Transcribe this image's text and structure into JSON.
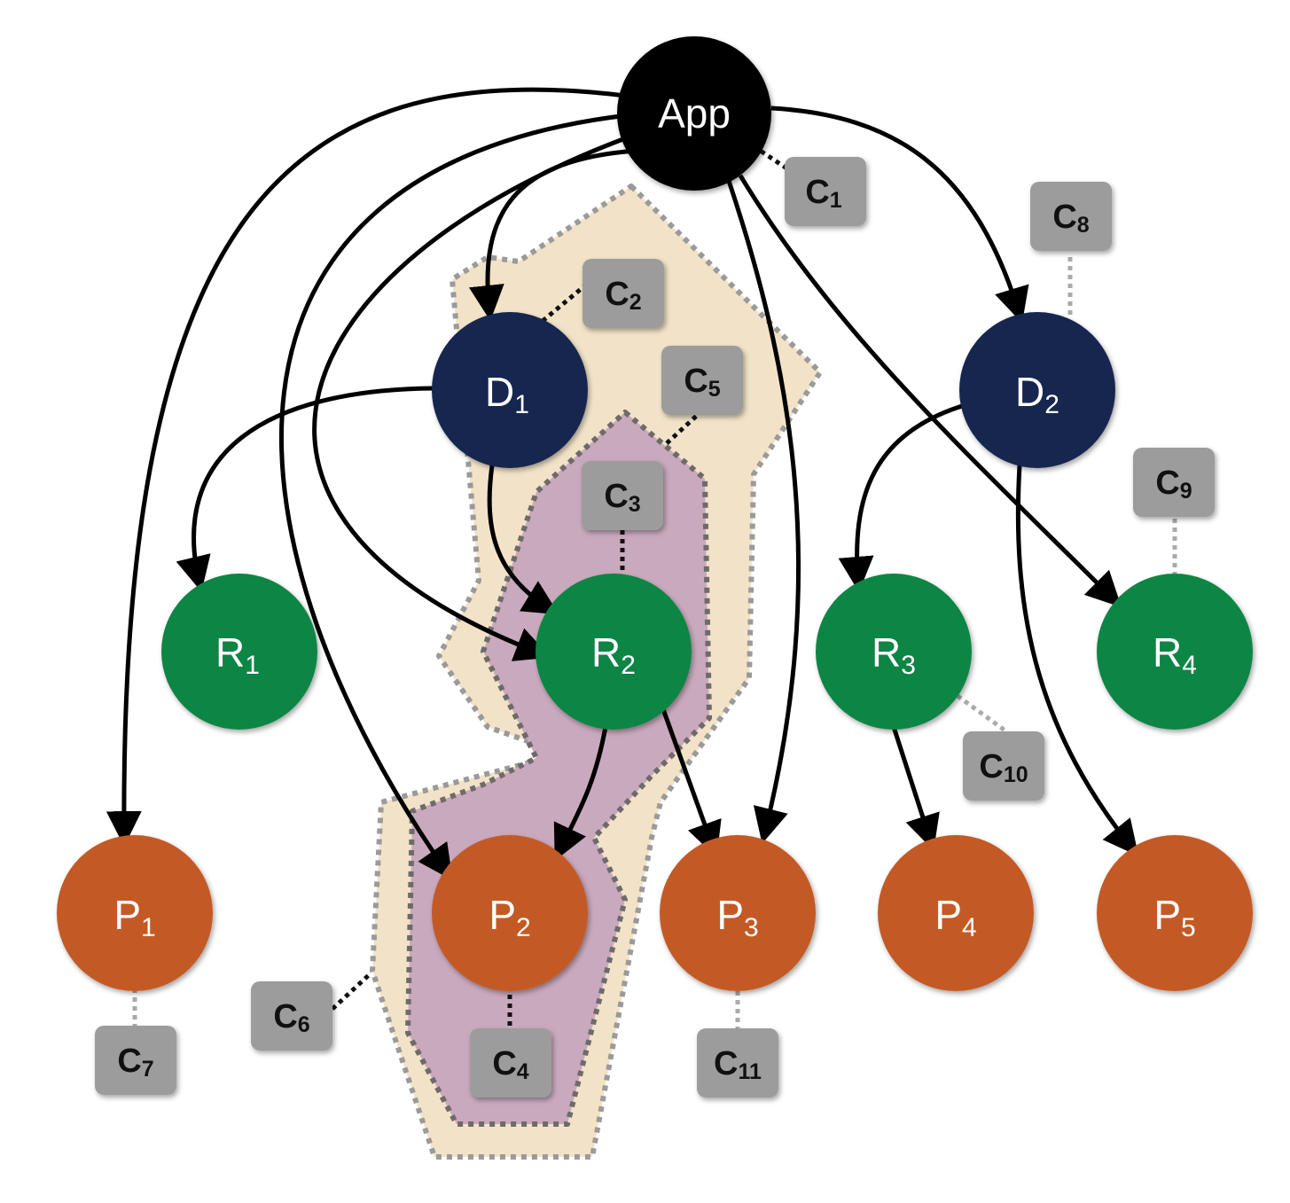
{
  "diagram": {
    "nodes": {
      "app": {
        "main": "App",
        "sub": "",
        "fill": "#000000"
      },
      "d1": {
        "main": "D",
        "sub": "1",
        "fill": "#16264f"
      },
      "d2": {
        "main": "D",
        "sub": "2",
        "fill": "#16264f"
      },
      "r1": {
        "main": "R",
        "sub": "1",
        "fill": "#0e8544"
      },
      "r2": {
        "main": "R",
        "sub": "2",
        "fill": "#0e8544"
      },
      "r3": {
        "main": "R",
        "sub": "3",
        "fill": "#0e8544"
      },
      "r4": {
        "main": "R",
        "sub": "4",
        "fill": "#0e8544"
      },
      "p1": {
        "main": "P",
        "sub": "1",
        "fill": "#c35a26"
      },
      "p2": {
        "main": "P",
        "sub": "2",
        "fill": "#c35a26"
      },
      "p3": {
        "main": "P",
        "sub": "3",
        "fill": "#c35a26"
      },
      "p4": {
        "main": "P",
        "sub": "4",
        "fill": "#c35a26"
      },
      "p5": {
        "main": "P",
        "sub": "5",
        "fill": "#c35a26"
      }
    },
    "labels": {
      "c1": {
        "main": "C",
        "sub": "1"
      },
      "c2": {
        "main": "C",
        "sub": "2"
      },
      "c3": {
        "main": "C",
        "sub": "3"
      },
      "c4": {
        "main": "C",
        "sub": "4"
      },
      "c5": {
        "main": "C",
        "sub": "5"
      },
      "c6": {
        "main": "C",
        "sub": "6"
      },
      "c7": {
        "main": "C",
        "sub": "7"
      },
      "c8": {
        "main": "C",
        "sub": "8"
      },
      "c9": {
        "main": "C",
        "sub": "9"
      },
      "c10": {
        "main": "C",
        "sub": "10"
      },
      "c11": {
        "main": "C",
        "sub": "11"
      }
    },
    "colors": {
      "outer_region": "#f2e3c8",
      "inner_region": "#c9a9bd",
      "label_box": "#9c9c9c",
      "arrow": "#000000"
    }
  }
}
